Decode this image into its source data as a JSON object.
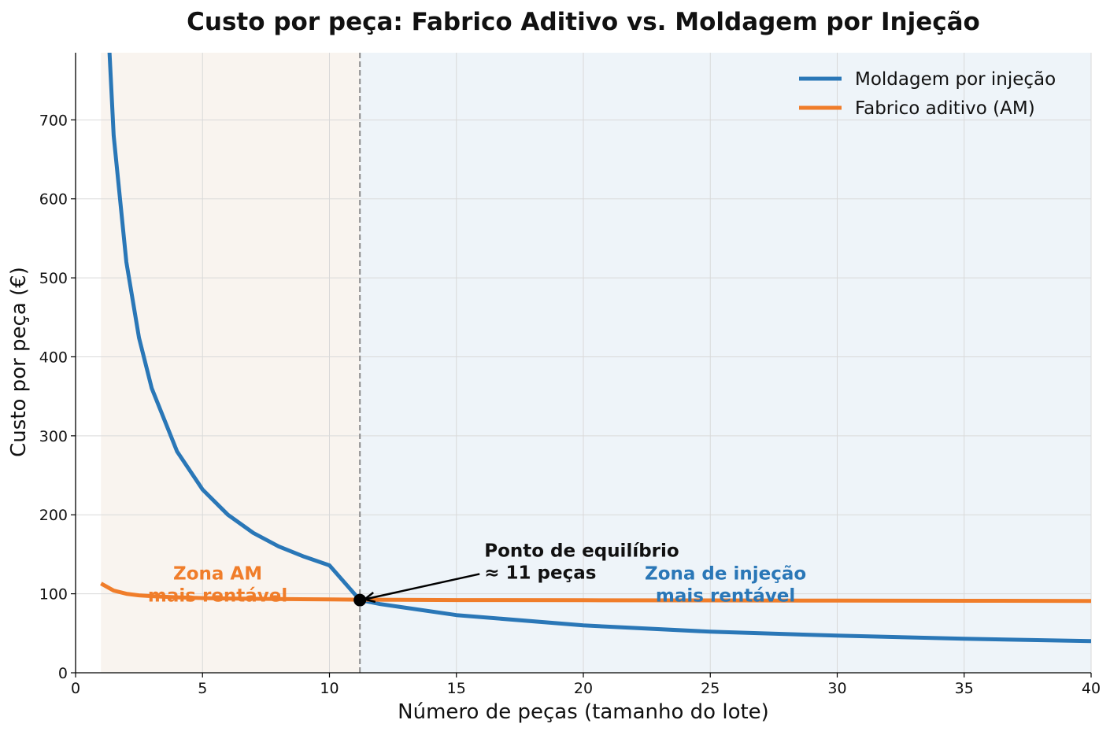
{
  "chart_data": {
    "type": "line",
    "title": "Custo por peça: Fabrico Aditivo vs. Moldagem por Injeção",
    "xlabel": "Número de peças (tamanho do lote)",
    "ylabel": "Custo por peça (€)",
    "xlim": [
      0,
      40
    ],
    "ylim": [
      0,
      785
    ],
    "xticks": [
      0,
      5,
      10,
      15,
      20,
      25,
      30,
      35,
      40
    ],
    "yticks": [
      0,
      100,
      200,
      300,
      400,
      500,
      600,
      700
    ],
    "grid": true,
    "legend_position": "top-right",
    "series": [
      {
        "name": "Moldagem por injeção",
        "color": "#2a77b7",
        "x": [
          1,
          1.5,
          2,
          2.5,
          3,
          4,
          5,
          6,
          7,
          8,
          9,
          10,
          11.2,
          12,
          15,
          20,
          25,
          30,
          35,
          40
        ],
        "y": [
          1000,
          680,
          520,
          424,
          360,
          280,
          232,
          200,
          177,
          160,
          147,
          136,
          92,
          87,
          73,
          60,
          52,
          47,
          43,
          40
        ]
      },
      {
        "name": "Fabrico aditivo (AM)",
        "color": "#f07d2a",
        "x": [
          1,
          1.5,
          2,
          2.5,
          3,
          4,
          5,
          6,
          8,
          10,
          11.2,
          15,
          20,
          25,
          30,
          35,
          40
        ],
        "y": [
          113,
          104,
          100,
          98,
          97,
          95.5,
          94.5,
          94,
          93.3,
          92.8,
          92.5,
          92,
          91.8,
          91.6,
          91.4,
          91.2,
          91
        ]
      }
    ],
    "zones": [
      {
        "from": 1,
        "to": 11.2,
        "color": "#f9f4ef",
        "label": "Zona AM\nmais rentável",
        "label_color": "#f07d2a",
        "label_x": 5.6,
        "label_y": 125
      },
      {
        "from": 11.2,
        "to": 40,
        "color": "#eef4f9",
        "label": "Zona de injeção\nmais rentável",
        "label_color": "#2a77b7",
        "label_x": 25.6,
        "label_y": 125
      }
    ],
    "breakeven": {
      "x": 11.2,
      "y": 92,
      "label": "Ponto de equilíbrio\n≈ 11 peças",
      "label_x": 16.1,
      "label_y": 143
    }
  }
}
